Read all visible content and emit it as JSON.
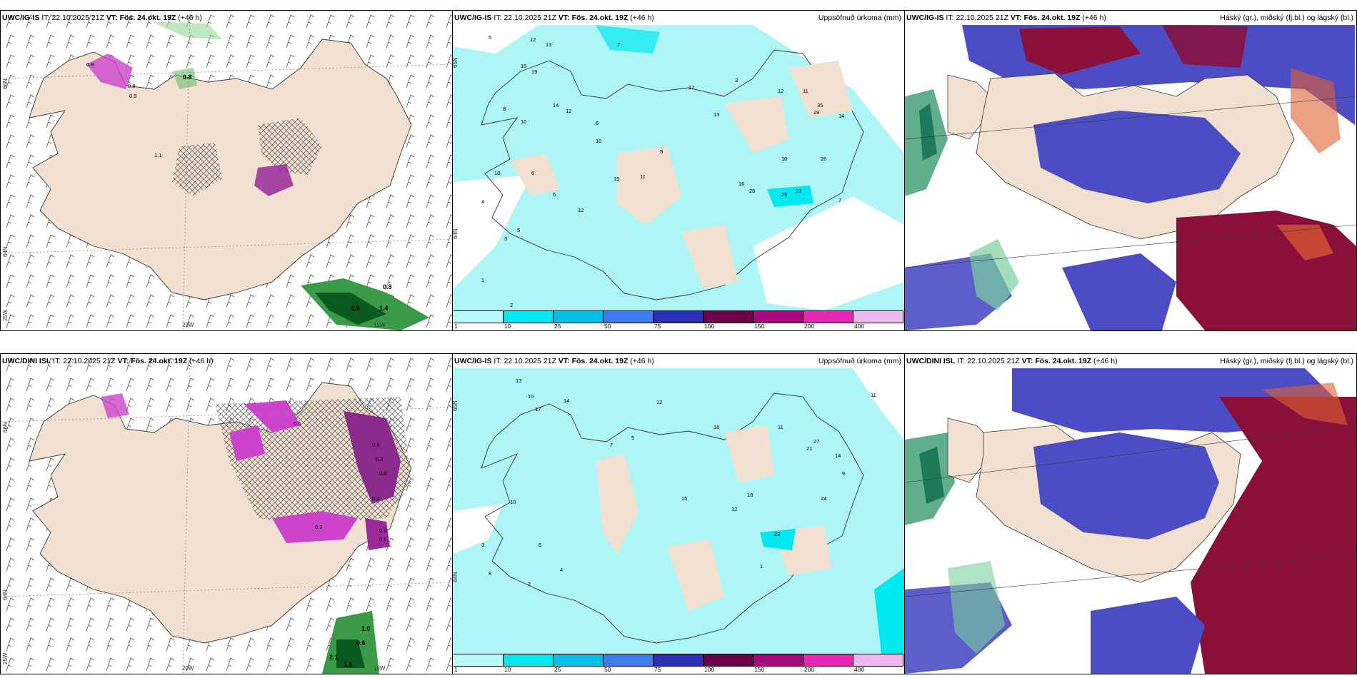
{
  "rows": [
    {
      "wind": {
        "model": "UWC/IG-IS",
        "it_label": "IT:",
        "it": "22.10.2025 21Z",
        "vt_label": "VT:",
        "vt": "Fös. 24.okt. 19Z",
        "lead": "(+46 h)",
        "lon_labels": [
          "20W",
          "15W",
          "25W"
        ],
        "lat_labels": [
          "66N",
          "64N"
        ],
        "values": [
          "0.8",
          "0.9",
          "0.9",
          "1.1",
          "0.8",
          "2.9",
          "1.4",
          "0.8"
        ]
      },
      "precip": {
        "model": "UWC/IG-IS",
        "it_label": "IT:",
        "it": "22.10.2025 21Z",
        "vt_label": "VT:",
        "vt": "Fös. 24.okt. 19Z",
        "lead": "(+46 h)",
        "title": "Uppsöfnuð úrkoma (mm)",
        "lat_labels": [
          "65N",
          "64N"
        ],
        "values": [
          "12",
          "13",
          "15",
          "19",
          "5",
          "7",
          "14",
          "12",
          "10",
          "8",
          "6",
          "6",
          "17",
          "3",
          "12",
          "11",
          "35",
          "29",
          "26",
          "28",
          "16",
          "25",
          "23",
          "10",
          "12",
          "9",
          "6",
          "5",
          "4",
          "3",
          "2",
          "1",
          "18",
          "15",
          "11",
          "13",
          "10",
          "7",
          "14"
        ]
      },
      "cloud": {
        "model": "UWC/IG-IS",
        "it_label": "IT:",
        "it": "22.10.2025 21Z",
        "vt_label": "VT:",
        "vt": "Fös. 24.okt. 19Z",
        "lead": "(+46 h)",
        "title": "Háský (gr.), miðský (fj.bl.) og lágský (bl.)"
      }
    },
    {
      "wind": {
        "model": "UWC/DINI ISL",
        "it_label": "IT:",
        "it": "22.10.2025 21Z",
        "vt_label": "VT:",
        "vt": "Fös. 24.okt. 19Z",
        "lead": "(+46 h)",
        "lon_labels": [
          "20W",
          "15W",
          "25W"
        ],
        "lat_labels": [
          "66N",
          "64N"
        ],
        "values": [
          "0.5",
          "0.6",
          "0.3",
          "0.8",
          "0.2",
          "0.5",
          "0.6",
          "1.0",
          "0.6",
          "2.1",
          "1.1",
          "0.3"
        ]
      },
      "precip": {
        "model": "UWC/IG-IS",
        "it_label": "IT:",
        "it": "22.10.2025 21Z",
        "vt_label": "VT:",
        "vt": "Fös. 24.okt. 19Z",
        "lead": "(+46 h)",
        "title": "Uppsöfnuð úrkoma (mm)",
        "lat_labels": [
          "65N",
          "64N"
        ],
        "values": [
          "13",
          "10",
          "14",
          "12",
          "5",
          "7",
          "16",
          "11",
          "27",
          "21",
          "14",
          "18",
          "12",
          "23",
          "24",
          "9",
          "6",
          "4",
          "3",
          "2",
          "1",
          "8",
          "10",
          "11",
          "15",
          "17"
        ]
      },
      "cloud": {
        "model": "UWC/DINI ISL",
        "it_label": "IT:",
        "it": "22.10.2025 21Z",
        "vt_label": "VT:",
        "vt": "Fös. 24.okt. 19Z",
        "lead": "(+46 h)",
        "title": "Háský (gr.), miðský (fj.bl.) og lágský (bl.)"
      }
    }
  ],
  "precip_legend": {
    "ticks": [
      "1",
      "10",
      "25",
      "50",
      "75",
      "100",
      "150",
      "200",
      "400"
    ],
    "colors": [
      "#b8fafa",
      "#00e8ef",
      "#00c0ea",
      "#3e7bee",
      "#2a2fb8",
      "#6a0048",
      "#a8087c",
      "#e826b4",
      "#f0b8f0"
    ]
  },
  "colors": {
    "land": "#f2e1d0",
    "sea_precip": "#aef5f5",
    "low_cloud": "#4c4cc4",
    "high_cloud": "#8a0f3a",
    "green": "#3a9a48",
    "snow": "#cc44cc"
  }
}
